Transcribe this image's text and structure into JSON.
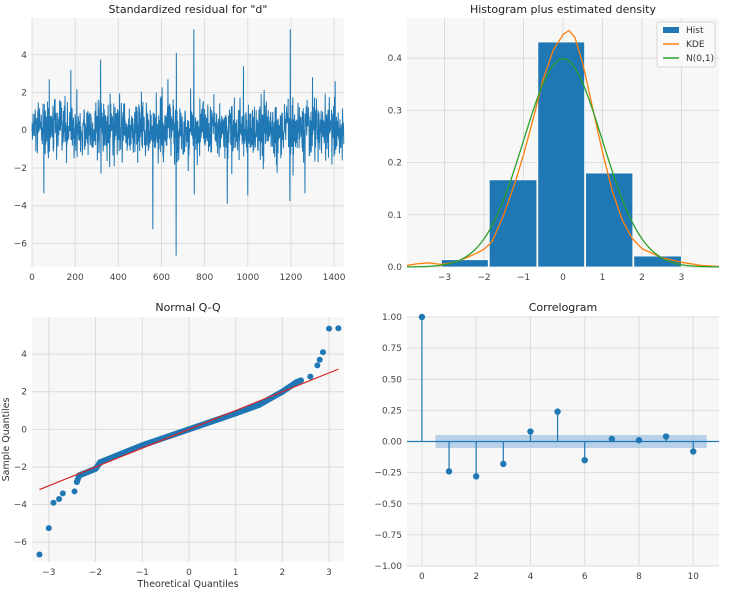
{
  "colors": {
    "blue": "#1f77b4",
    "orange": "#ff7f0e",
    "green": "#2ca02c",
    "red": "#d62728",
    "band": "#a9c7e3",
    "plot_bg": "#f7f7f7",
    "grid": "#dcdcdc"
  },
  "chart_data": [
    {
      "type": "line",
      "title": "Standardized residual for \"d\"",
      "n_points": 1446,
      "xlim": [
        0,
        1446
      ],
      "ylim": [
        -7.25,
        5.95
      ],
      "xticks": [
        "0",
        "200",
        "400",
        "600",
        "800",
        "1000",
        "1200",
        "1400"
      ],
      "xtick_values": [
        0,
        200,
        400,
        600,
        800,
        1000,
        1200,
        1400
      ],
      "yticks": [
        "−6",
        "−4",
        "−2",
        "0",
        "2",
        "4"
      ],
      "ytick_values": [
        -6,
        -4,
        -2,
        0,
        2,
        4
      ],
      "typical_range": [
        -2.5,
        2.5
      ],
      "spikes": [
        [
          55,
          -3.35
        ],
        [
          80,
          2.7
        ],
        [
          180,
          3.2
        ],
        [
          318,
          3.75
        ],
        [
          320,
          -2.3
        ],
        [
          560,
          -5.25
        ],
        [
          630,
          2.7
        ],
        [
          668,
          -6.65
        ],
        [
          669,
          4.1
        ],
        [
          750,
          5.35
        ],
        [
          752,
          -3.4
        ],
        [
          905,
          -3.9
        ],
        [
          980,
          3.4
        ],
        [
          1000,
          -3.45
        ],
        [
          1195,
          -3.75
        ],
        [
          1197,
          5.35
        ],
        [
          1210,
          -2.4
        ],
        [
          1265,
          -3.35
        ],
        [
          1300,
          2.8
        ],
        [
          1405,
          2.6
        ]
      ],
      "grid": true
    },
    {
      "type": "bar",
      "title": "Histogram plus estimated density",
      "xlim": [
        -3.95,
        3.95
      ],
      "ylim": [
        0,
        0.477
      ],
      "xticks": [
        "−3",
        "−2",
        "−1",
        "0",
        "1",
        "2",
        "3"
      ],
      "xtick_values": [
        -3,
        -2,
        -1,
        0,
        1,
        2,
        3
      ],
      "yticks": [
        "0.0",
        "0.1",
        "0.2",
        "0.3",
        "0.4"
      ],
      "ytick_values": [
        0,
        0.1,
        0.2,
        0.3,
        0.4
      ],
      "bin_edges": [
        -3.09,
        -1.88,
        -0.65,
        0.56,
        1.78,
        3.01
      ],
      "bar_values": [
        0.014,
        0.167,
        0.431,
        0.18,
        0.021
      ],
      "kde": {
        "x": [
          -3.95,
          -3.7,
          -3.4,
          -3.1,
          -2.8,
          -2.5,
          -2.2,
          -2.0,
          -1.8,
          -1.5,
          -1.2,
          -1.0,
          -0.75,
          -0.5,
          -0.25,
          0,
          0.15,
          0.3,
          0.5,
          0.75,
          1.0,
          1.25,
          1.5,
          1.75,
          2.0,
          2.5,
          3.0,
          3.5,
          3.95
        ],
        "y": [
          0.003,
          0.006,
          0.008,
          0.005,
          0.008,
          0.016,
          0.026,
          0.034,
          0.048,
          0.1,
          0.165,
          0.215,
          0.285,
          0.36,
          0.415,
          0.445,
          0.453,
          0.44,
          0.39,
          0.305,
          0.22,
          0.145,
          0.09,
          0.055,
          0.035,
          0.018,
          0.009,
          0.003,
          0.001
        ]
      },
      "legend": {
        "position": "top-right",
        "entries": [
          "Hist",
          "KDE",
          "N(0,1)"
        ]
      },
      "grid": true
    },
    {
      "type": "scatter",
      "title": "Normal Q-Q",
      "xlabel": "Theoretical Quantiles",
      "ylabel": "Sample Quantiles",
      "xlim": [
        -3.36,
        3.32
      ],
      "ylim": [
        -7.05,
        5.97
      ],
      "xticks": [
        "−3",
        "−2",
        "−1",
        "0",
        "1",
        "2",
        "3"
      ],
      "xtick_values": [
        -3,
        -2,
        -1,
        0,
        1,
        2,
        3
      ],
      "yticks": [
        "−6",
        "−4",
        "−2",
        "0",
        "2",
        "4"
      ],
      "ytick_values": [
        -6,
        -4,
        -2,
        0,
        2,
        4
      ],
      "quantile_curve": [
        [
          -3.2,
          -6.65
        ],
        [
          -3.0,
          -5.25
        ],
        [
          -2.9,
          -3.9
        ],
        [
          -2.78,
          -3.7
        ],
        [
          -2.7,
          -3.4
        ],
        [
          -2.45,
          -3.3
        ],
        [
          -2.4,
          -2.8
        ],
        [
          -2.35,
          -2.45
        ],
        [
          -2.0,
          -2.1
        ],
        [
          -1.9,
          -1.75
        ],
        [
          -1.0,
          -0.85
        ],
        [
          0,
          0
        ],
        [
          1.0,
          0.85
        ],
        [
          1.5,
          1.3
        ],
        [
          2.0,
          2.0
        ],
        [
          2.3,
          2.5
        ],
        [
          2.6,
          2.8
        ],
        [
          2.75,
          3.4
        ],
        [
          2.8,
          3.7
        ],
        [
          2.87,
          4.1
        ],
        [
          3.0,
          5.35
        ],
        [
          3.2,
          5.37
        ]
      ],
      "reference_line": [
        [
          -3.2,
          -3.2
        ],
        [
          3.2,
          3.2
        ]
      ],
      "grid": true
    },
    {
      "type": "stem",
      "title": "Correlogram",
      "xlim": [
        -0.55,
        10.95
      ],
      "ylim": [
        -1,
        1
      ],
      "xticks": [
        "0",
        "2",
        "4",
        "6",
        "8",
        "10"
      ],
      "xtick_values": [
        0,
        2,
        4,
        6,
        8,
        10
      ],
      "yticks": [
        "−1.00",
        "−0.75",
        "−0.50",
        "−0.25",
        "0.00",
        "0.25",
        "0.50",
        "0.75",
        "1.00"
      ],
      "ytick_values": [
        -1,
        -0.75,
        -0.5,
        -0.25,
        0,
        0.25,
        0.5,
        0.75,
        1
      ],
      "lags": [
        0,
        1,
        2,
        3,
        4,
        5,
        6,
        7,
        8,
        9,
        10
      ],
      "acf": [
        1.0,
        -0.24,
        -0.28,
        -0.18,
        0.08,
        0.24,
        -0.15,
        0.02,
        0.01,
        0.04,
        -0.08
      ],
      "confidence_band": {
        "from_lag": 0.5,
        "to_lag": 10.5,
        "half_width": 0.052
      },
      "grid": true
    }
  ]
}
